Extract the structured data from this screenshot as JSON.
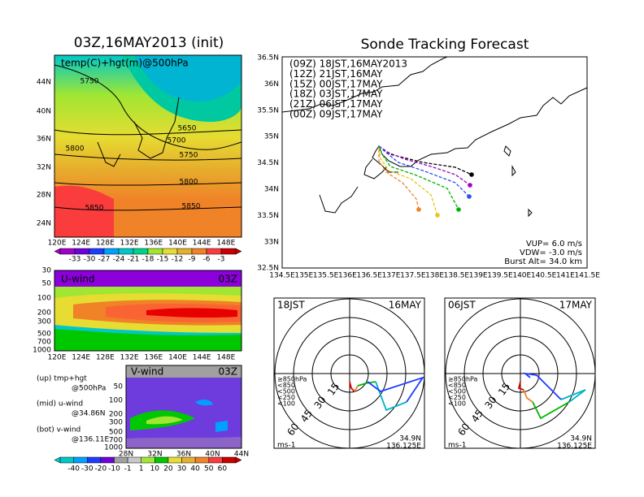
{
  "left_panels": {
    "top": {
      "title": "03Z,16MAY2013 (init)",
      "label": "temp(C)+hgt(m)@500hPa",
      "yticks": [
        "44N",
        "40N",
        "36N",
        "32N",
        "28N",
        "24N"
      ],
      "xticks": [
        "120E",
        "124E",
        "128E",
        "132E",
        "136E",
        "140E",
        "144E",
        "148E"
      ],
      "contours": [
        "5750",
        "5650",
        "5700",
        "5750",
        "5800",
        "5800",
        "5850",
        "5850"
      ],
      "colorbar": [
        "-33",
        "-30",
        "-27",
        "-24",
        "-21",
        "-18",
        "-15",
        "-12",
        "-9",
        "-6",
        "-3"
      ]
    },
    "mid": {
      "label": "U-wind",
      "time": "03Z",
      "yticks": [
        "30",
        "50",
        "100",
        "200",
        "300",
        "500",
        "700",
        "1000"
      ],
      "xticks": [
        "120E",
        "124E",
        "128E",
        "132E",
        "136E",
        "140E",
        "144E",
        "148E"
      ]
    },
    "notes": [
      "(up) tmp+hgt",
      "@500hPa",
      "(mid) u-wind",
      "@34.86N",
      "(bot) v-wind",
      "@136.11E"
    ],
    "bottom": {
      "label": "V-wind",
      "time": "03Z",
      "yticks": [
        "50",
        "100",
        "200",
        "300",
        "500",
        "700",
        "1000"
      ],
      "xticks": [
        "28N",
        "32N",
        "36N",
        "40N",
        "44N"
      ],
      "colorbar": [
        "-40",
        "-30",
        "-20",
        "-10",
        "-1",
        "1",
        "10",
        "20",
        "30",
        "40",
        "50",
        "60"
      ]
    }
  },
  "tracking": {
    "title": "Sonde Tracking Forecast",
    "legend": [
      {
        "text": "(09Z)  18JST,16MAY2013",
        "color": "#000000"
      },
      {
        "text": "(12Z)  21JST,16MAY",
        "color": "#a000c8"
      },
      {
        "text": "(15Z)  00JST,17MAY",
        "color": "#2850f0"
      },
      {
        "text": "(18Z)  03JST,17MAY",
        "color": "#00b400"
      },
      {
        "text": "(21Z)  06JST,17MAY",
        "color": "#e6c814"
      },
      {
        "text": "(00Z)  09JST,17MAY",
        "color": "#f08228"
      }
    ],
    "yticks": [
      "36.5N",
      "36N",
      "35.5N",
      "35N",
      "34.5N",
      "34N",
      "33.5N",
      "33N",
      "32.5N"
    ],
    "xticks": [
      "134.5E",
      "135E",
      "135.5E",
      "136E",
      "136.5E",
      "137E",
      "137.5E",
      "138E",
      "138.5E",
      "139E",
      "139.5E",
      "140E",
      "140.5E",
      "141E",
      "141.5E"
    ],
    "params": [
      "VUP= 6.0 m/s",
      "VDW= -3.0 m/s",
      "Burst Alt= 34.0 km"
    ]
  },
  "hodographs": [
    {
      "time": "18JST",
      "date": "16MAY",
      "rings": [
        "15",
        "30",
        "45",
        "60"
      ],
      "levels": [
        "≥850hPa",
        "<850",
        "<500",
        "<250",
        "<100"
      ],
      "unit": "ms-1",
      "lat": "34.9N",
      "lon": "136.125E"
    },
    {
      "time": "06JST",
      "date": "17MAY",
      "rings": [
        "15",
        "30",
        "45",
        "60"
      ],
      "levels": [
        "≥850hPa",
        "<850",
        "<500",
        "<250",
        "<100"
      ],
      "unit": "ms-1",
      "lat": "34.9N",
      "lon": "136.125E"
    }
  ]
}
